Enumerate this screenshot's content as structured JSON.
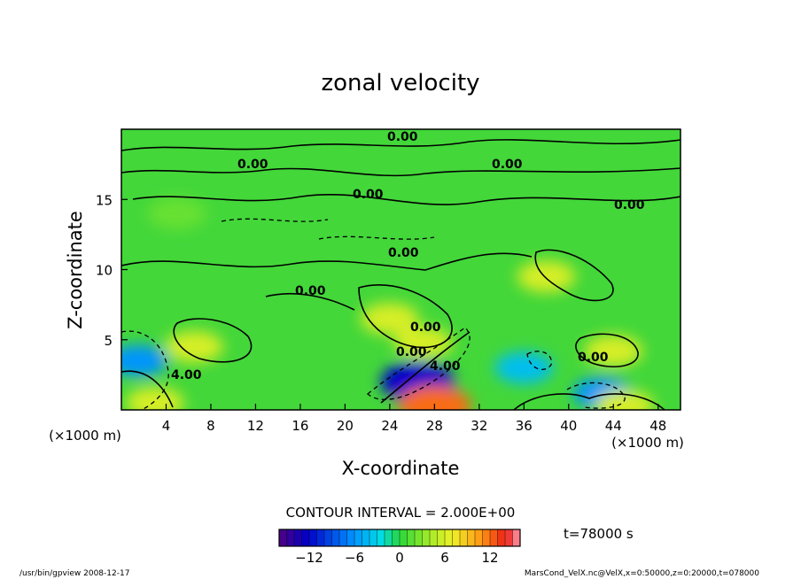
{
  "footer": {
    "left": "/usr/bin/gpview   2008-12-17",
    "right": "MarsCond_VelX.nc@VelX,x=0:50000,z=0:20000,t=078000"
  },
  "chart_data": {
    "type": "heatmap",
    "title": "zonal velocity",
    "xlabel": "X-coordinate",
    "ylabel": "Z-coordinate",
    "x_unit_left": "(×1000 m)",
    "x_unit_right": "(×1000 m)",
    "xlim": [
      0,
      50
    ],
    "ylim": [
      0,
      20
    ],
    "x_ticks": [
      4,
      8,
      12,
      16,
      20,
      24,
      28,
      32,
      36,
      40,
      44,
      48
    ],
    "y_ticks": [
      5,
      10,
      15
    ],
    "contour_interval_text": "CONTOUR INTERVAL = 2.000E+00",
    "time_text": "t=78000 s",
    "colorbar": {
      "min": -16,
      "max": 16,
      "ticks": [
        -12,
        -6,
        0,
        6,
        12
      ]
    },
    "contour_labels": [
      "0.00",
      "0.00",
      "0.00",
      "0.00",
      "0.00",
      "0.00",
      "0.00",
      "0.00",
      "4.00",
      "0.00",
      "4.00",
      "0.00"
    ],
    "features": [
      {
        "x": 6.5,
        "z": 4.5,
        "value": 6
      },
      {
        "x": 24,
        "z": 6.5,
        "value": 6
      },
      {
        "x": 27,
        "z": 4.8,
        "value": 6
      },
      {
        "x": 38,
        "z": 9.5,
        "value": 6
      },
      {
        "x": 44,
        "z": 4.2,
        "value": 6
      },
      {
        "x": 26.5,
        "z": 2.0,
        "value": -12
      },
      {
        "x": 1.5,
        "z": 3.5,
        "value": -6
      },
      {
        "x": 43,
        "z": 1.2,
        "value": -6
      },
      {
        "x": 36,
        "z": 3.0,
        "value": -4
      },
      {
        "x": 5,
        "z": 14,
        "value": 2
      },
      {
        "x": 28,
        "z": 0.3,
        "value": 12
      },
      {
        "x": 3,
        "z": 0.5,
        "value": 6
      },
      {
        "x": 45,
        "z": 0.3,
        "value": 6
      }
    ]
  }
}
